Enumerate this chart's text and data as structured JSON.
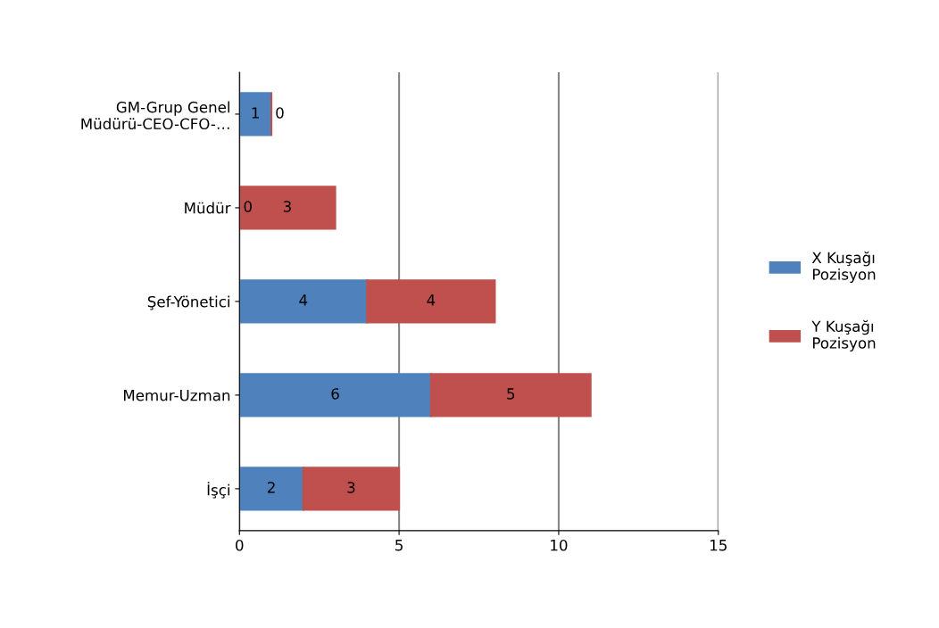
{
  "chart_data": {
    "type": "bar",
    "orientation": "horizontal",
    "stacked": true,
    "categories": [
      "GM-Grup Genel\nMüdürü-CEO-CFO-…",
      "Müdür",
      "Şef-Yönetici",
      "Memur-Uzman",
      "İşçi"
    ],
    "series": [
      {
        "name": "X Kuşağı\nPozisyon",
        "color": "#4f81bd",
        "values": [
          1,
          0,
          4,
          6,
          2
        ]
      },
      {
        "name": "Y Kuşağı\nPozisyon",
        "color": "#c0504d",
        "values": [
          0,
          3,
          4,
          5,
          3
        ]
      }
    ],
    "xlim": [
      0,
      15
    ],
    "xticks": [
      0,
      5,
      10,
      15
    ],
    "grid": "x",
    "legend": "right",
    "data_labels": true
  }
}
